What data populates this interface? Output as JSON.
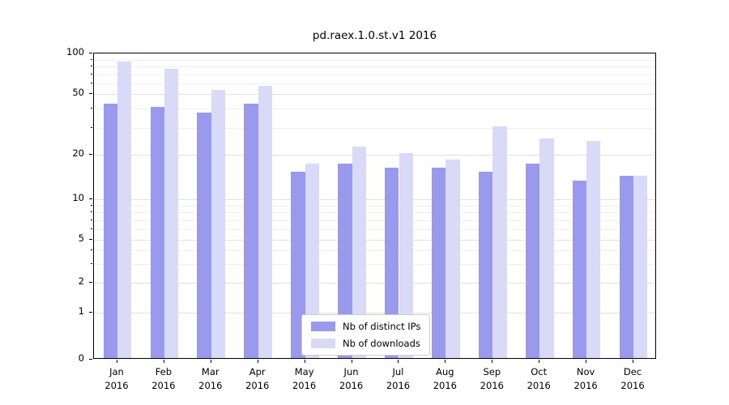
{
  "chart_data": {
    "type": "bar",
    "title": "pd.raex.1.0.st.v1 2016",
    "categories": [
      "Jan 2016",
      "Feb 2016",
      "Mar 2016",
      "Apr 2016",
      "May 2016",
      "Jun 2016",
      "Jul 2016",
      "Aug 2016",
      "Sep 2016",
      "Oct 2016",
      "Nov 2016",
      "Dec 2016"
    ],
    "series": [
      {
        "name": "Nb of distinct IPs",
        "color": "#9999ee",
        "values": [
          42,
          40,
          37,
          42,
          15,
          17,
          16,
          16,
          15,
          17,
          13,
          14
        ]
      },
      {
        "name": "Nb of downloads",
        "color": "#d9d9f8",
        "values": [
          85,
          75,
          52,
          56,
          17,
          22,
          20,
          18,
          30,
          25,
          24,
          14
        ]
      }
    ],
    "yticks": [
      0,
      1,
      2,
      5,
      10,
      20,
      50,
      100
    ],
    "yscale": "symlog",
    "ylim": [
      0,
      100
    ],
    "xlabel": "",
    "ylabel": "",
    "grid": true,
    "legend_position": "lower center",
    "colors": {
      "grid_major": "#e2e2e2",
      "grid_minor": "#efefef",
      "axis": "#000000"
    }
  }
}
